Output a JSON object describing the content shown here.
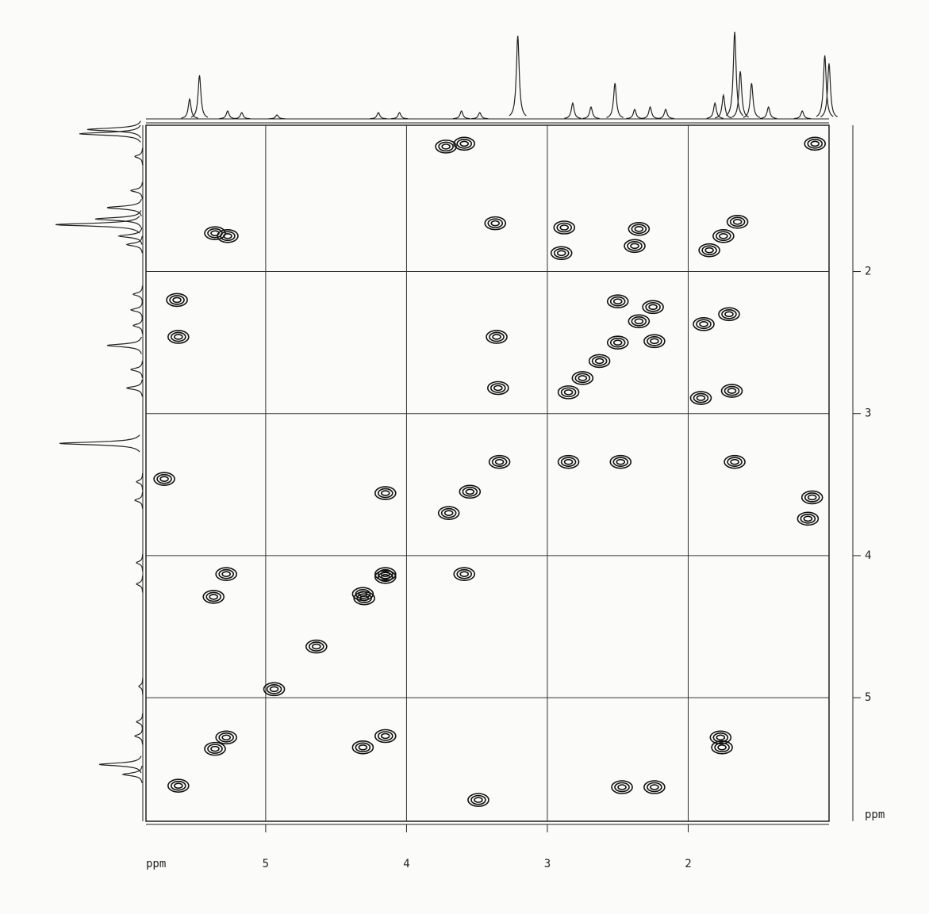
{
  "chart_data": {
    "type": "contour",
    "x_label": "ppm",
    "y_label": "ppm",
    "xlim": [
      5.85,
      1.0
    ],
    "ylim": [
      0.97,
      5.87
    ],
    "xticks": [
      5,
      4,
      3,
      2
    ],
    "yticks": [
      2,
      3,
      4,
      5
    ],
    "grid": true,
    "color": "#111111",
    "peaks": {
      "x": [
        3.72,
        3.59,
        5.36,
        5.27,
        3.37,
        2.88,
        2.9,
        2.35,
        2.38,
        5.63,
        5.62,
        3.36,
        3.35,
        2.5,
        2.24,
        1.89,
        1.71,
        1.91,
        1.69,
        2.85,
        2.48,
        1.67,
        1.12,
        1.15,
        5.72,
        4.15,
        5.28,
        5.37,
        4.31,
        4.15,
        3.59,
        2.47,
        2.24,
        1.77,
        1.76,
        3.49,
        4.31,
        4.15,
        1.1,
        1.65,
        1.75,
        1.85,
        2.25,
        2.35,
        2.5,
        2.63,
        2.75,
        2.85,
        3.34,
        3.55,
        3.7,
        4.15,
        4.3,
        4.64,
        4.94,
        5.28,
        5.36,
        5.62
      ],
      "values": [
        1.12,
        1.1,
        1.73,
        1.75,
        1.66,
        1.69,
        1.87,
        1.7,
        1.82,
        2.2,
        2.46,
        2.46,
        2.82,
        2.21,
        2.49,
        2.37,
        2.3,
        2.89,
        2.84,
        3.34,
        3.34,
        3.34,
        3.59,
        3.74,
        3.46,
        3.56,
        4.13,
        4.29,
        4.27,
        4.13,
        4.13,
        5.63,
        5.63,
        5.28,
        5.35,
        5.72,
        5.35,
        5.27,
        1.1,
        1.65,
        1.75,
        1.85,
        2.25,
        2.35,
        2.5,
        2.63,
        2.75,
        2.85,
        3.34,
        3.55,
        3.7,
        4.15,
        4.3,
        4.64,
        4.94,
        5.28,
        5.36,
        5.62
      ]
    },
    "projection": {
      "x": [
        5.54,
        5.47,
        5.27,
        5.17,
        4.92,
        4.2,
        4.05,
        3.61,
        3.48,
        3.21,
        2.82,
        2.69,
        2.52,
        2.38,
        2.27,
        2.16,
        1.81,
        1.75,
        1.67,
        1.63,
        1.55,
        1.43,
        1.19,
        1.03,
        1.0
      ],
      "values": [
        25,
        55,
        10,
        8,
        5,
        8,
        8,
        10,
        8,
        105,
        20,
        15,
        45,
        12,
        15,
        12,
        20,
        30,
        110,
        60,
        45,
        15,
        10,
        80,
        70
      ]
    }
  }
}
